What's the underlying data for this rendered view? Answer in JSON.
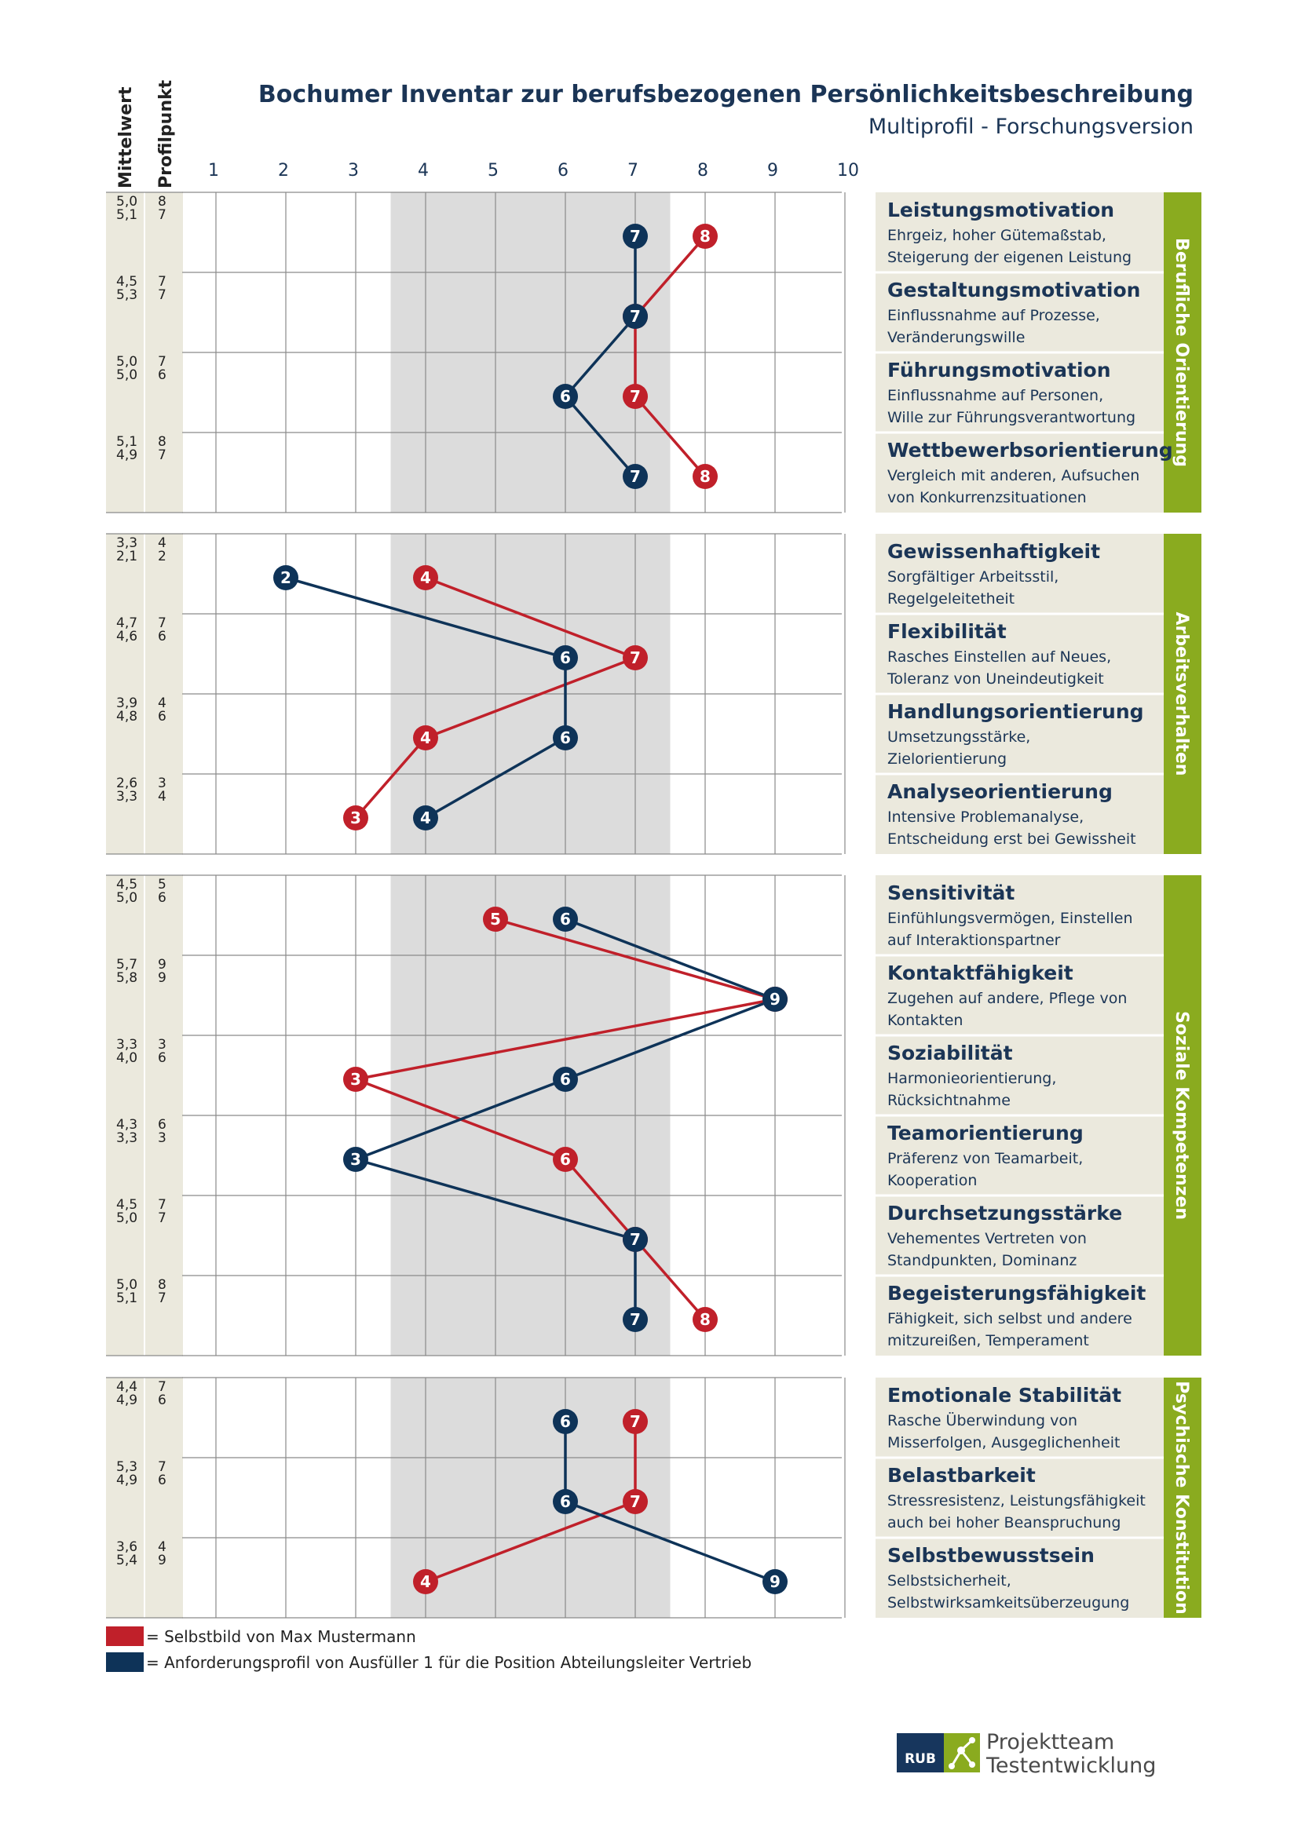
{
  "header": {
    "title": "Bochumer Inventar zur berufsbezogenen Persönlichkeitsbeschreibung",
    "subtitle": "Multiprofil - Forschungsversion"
  },
  "column_headers": {
    "mean": "Mittelwert",
    "profile": "Profilpunkt"
  },
  "colors": {
    "self": "#c0202a",
    "requirement": "#0e3358",
    "green": "#8aab1f",
    "sand": "#ebe9dd",
    "band": "#dcdcdc"
  },
  "legend": [
    {
      "color": "#c0202a",
      "text": "= Selbstbild von Max Mustermann"
    },
    {
      "color": "#0e3358",
      "text": "= Anforderungsprofil von Ausfüller 1 für die Position Abteilungsleiter Vertrieb"
    }
  ],
  "logo": {
    "mark": "RUB",
    "line1": "Projektteam",
    "line2": "Testentwicklung"
  },
  "chart_data": {
    "type": "line",
    "orientation": "horizontal-profile",
    "xlim": [
      1,
      10
    ],
    "x_ticks": [
      "1",
      "2",
      "3",
      "4",
      "5",
      "6",
      "7",
      "8",
      "9",
      "10"
    ],
    "average_band": [
      3.5,
      7.5
    ],
    "series": [
      {
        "name": "Selbstbild von Max Mustermann",
        "key": "self",
        "color": "#c0202a"
      },
      {
        "name": "Anforderungsprofil von Ausfüller 1 für die Position Abteilungsleiter Vertrieb",
        "key": "req",
        "color": "#0e3358"
      }
    ],
    "groups": [
      {
        "name": "Berufliche Orientierung",
        "scales": [
          {
            "name": "Leistungsmotivation",
            "desc1": "Ehrgeiz, hoher Gütemaßstab,",
            "desc2": "Steigerung der eigenen Leistung",
            "mean1": "5,0",
            "mean2": "5,1",
            "prof1": "8",
            "prof2": "7",
            "self": 8,
            "req": 7
          },
          {
            "name": "Gestaltungsmotivation",
            "desc1": "Einflussnahme auf Prozesse,",
            "desc2": "Veränderungswille",
            "mean1": "4,5",
            "mean2": "5,3",
            "prof1": "7",
            "prof2": "7",
            "self": 7,
            "req": 7
          },
          {
            "name": "Führungsmotivation",
            "desc1": "Einflussnahme auf Personen,",
            "desc2": "Wille zur Führungsverantwortung",
            "mean1": "5,0",
            "mean2": "5,0",
            "prof1": "7",
            "prof2": "6",
            "self": 7,
            "req": 6
          },
          {
            "name": "Wettbewerbsorientierung",
            "desc1": "Vergleich mit anderen, Aufsuchen",
            "desc2": "von Konkurrenzsituationen",
            "mean1": "5,1",
            "mean2": "4,9",
            "prof1": "8",
            "prof2": "7",
            "self": 8,
            "req": 7
          }
        ]
      },
      {
        "name": "Arbeitsverhalten",
        "scales": [
          {
            "name": "Gewissenhaftigkeit",
            "desc1": "Sorgfältiger Arbeitsstil,",
            "desc2": "Regelgeleitetheit",
            "mean1": "3,3",
            "mean2": "2,1",
            "prof1": "4",
            "prof2": "2",
            "self": 4,
            "req": 2
          },
          {
            "name": "Flexibilität",
            "desc1": "Rasches Einstellen auf Neues,",
            "desc2": "Toleranz von Uneindeutigkeit",
            "mean1": "4,7",
            "mean2": "4,6",
            "prof1": "7",
            "prof2": "6",
            "self": 7,
            "req": 6
          },
          {
            "name": "Handlungsorientierung",
            "desc1": "Umsetzungsstärke,",
            "desc2": "Zielorientierung",
            "mean1": "3,9",
            "mean2": "4,8",
            "prof1": "4",
            "prof2": "6",
            "self": 4,
            "req": 6
          },
          {
            "name": "Analyseorientierung",
            "desc1": "Intensive Problemanalyse,",
            "desc2": "Entscheidung erst bei Gewissheit",
            "mean1": "2,6",
            "mean2": "3,3",
            "prof1": "3",
            "prof2": "4",
            "self": 3,
            "req": 4
          }
        ]
      },
      {
        "name": "Soziale Kompetenzen",
        "scales": [
          {
            "name": "Sensitivität",
            "desc1": "Einfühlungsvermögen, Einstellen",
            "desc2": "auf Interaktionspartner",
            "mean1": "4,5",
            "mean2": "5,0",
            "prof1": "5",
            "prof2": "6",
            "self": 5,
            "req": 6
          },
          {
            "name": "Kontaktfähigkeit",
            "desc1": "Zugehen auf andere, Pflege von",
            "desc2": "Kontakten",
            "mean1": "5,7",
            "mean2": "5,8",
            "prof1": "9",
            "prof2": "9",
            "self": 9,
            "req": 9
          },
          {
            "name": "Soziabilität",
            "desc1": "Harmonieorientierung,",
            "desc2": "Rücksichtnahme",
            "mean1": "3,3",
            "mean2": "4,0",
            "prof1": "3",
            "prof2": "6",
            "self": 3,
            "req": 6
          },
          {
            "name": "Teamorientierung",
            "desc1": "Präferenz von Teamarbeit,",
            "desc2": "Kooperation",
            "mean1": "4,3",
            "mean2": "3,3",
            "prof1": "6",
            "prof2": "3",
            "self": 6,
            "req": 3
          },
          {
            "name": "Durchsetzungsstärke",
            "desc1": "Vehementes Vertreten von",
            "desc2": "Standpunkten, Dominanz",
            "mean1": "4,5",
            "mean2": "5,0",
            "prof1": "7",
            "prof2": "7",
            "self": 7,
            "req": 7
          },
          {
            "name": "Begeisterungsfähigkeit",
            "desc1": "Fähigkeit, sich selbst und andere",
            "desc2": "mitzureißen, Temperament",
            "mean1": "5,0",
            "mean2": "5,1",
            "prof1": "8",
            "prof2": "7",
            "self": 8,
            "req": 7
          }
        ]
      },
      {
        "name": "Psychische Konstitution",
        "scales": [
          {
            "name": "Emotionale Stabilität",
            "desc1": "Rasche Überwindung von",
            "desc2": "Misserfolgen, Ausgeglichenheit",
            "mean1": "4,4",
            "mean2": "4,9",
            "prof1": "7",
            "prof2": "6",
            "self": 7,
            "req": 6
          },
          {
            "name": "Belastbarkeit",
            "desc1": "Stressresistenz, Leistungsfähigkeit",
            "desc2": "auch bei hoher Beanspruchung",
            "mean1": "5,3",
            "mean2": "4,9",
            "prof1": "7",
            "prof2": "6",
            "self": 7,
            "req": 6
          },
          {
            "name": "Selbstbewusstsein",
            "desc1": "Selbstsicherheit,",
            "desc2": "Selbstwirksamkeitsüberzeugung",
            "mean1": "3,6",
            "mean2": "5,4",
            "prof1": "4",
            "prof2": "9",
            "self": 4,
            "req": 9
          }
        ]
      }
    ]
  }
}
